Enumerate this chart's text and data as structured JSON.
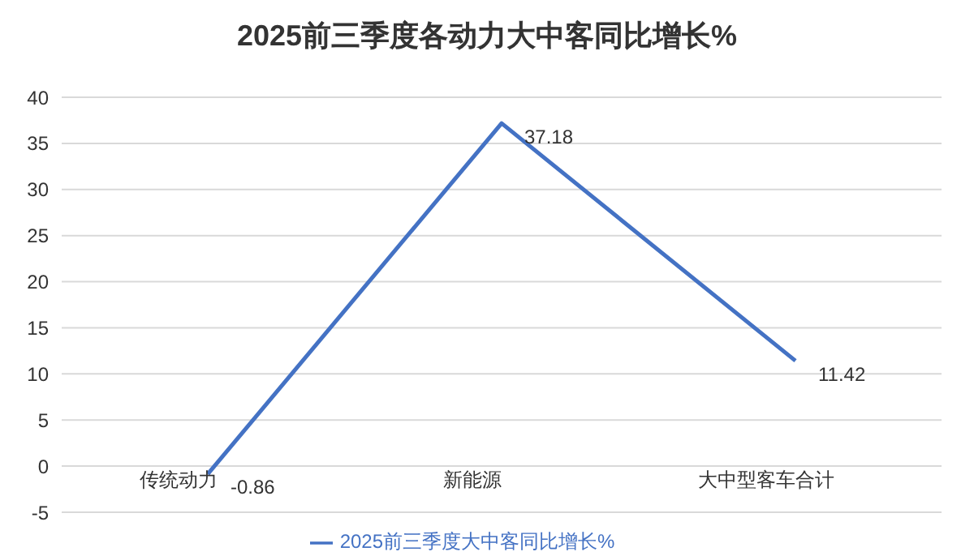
{
  "chart_data": {
    "type": "line",
    "title": "2025前三季度各动力大中客同比增长%",
    "categories": [
      "传统动力",
      "新能源",
      "大中型客车合计"
    ],
    "series": [
      {
        "name": "2025前三季度大中客同比增长%",
        "color": "#4472c4",
        "values": [
          -0.86,
          37.18,
          11.42
        ]
      }
    ],
    "ylim": [
      -5,
      40
    ],
    "yticks": [
      -5,
      0,
      5,
      10,
      15,
      20,
      25,
      30,
      35,
      40
    ],
    "grid": "y",
    "legend": "bottom",
    "data_labels": true,
    "marker": "none",
    "line_style": "solid"
  }
}
